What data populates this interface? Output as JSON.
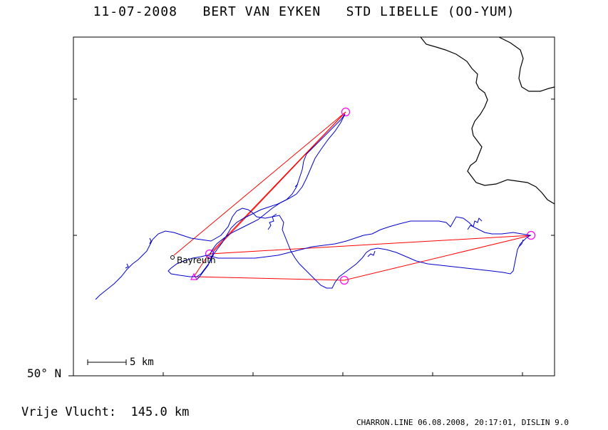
{
  "title": "11-07-2008   BERT VAN EYKEN   STD LIBELLE (OO-YUM)",
  "distance_label": "Vrije Vlucht:  145.0 km",
  "credit": "CHARRON.LINE 06.08.2008, 20:17:01, DISLIN 9.0",
  "latitude_label": "50° N",
  "scale_label": "5 km",
  "town_label": "Bayreuth",
  "colors": {
    "track": "#0000cc",
    "task": "#ff0000",
    "turnpoint": "#ff00ff",
    "border": "#000000"
  }
}
